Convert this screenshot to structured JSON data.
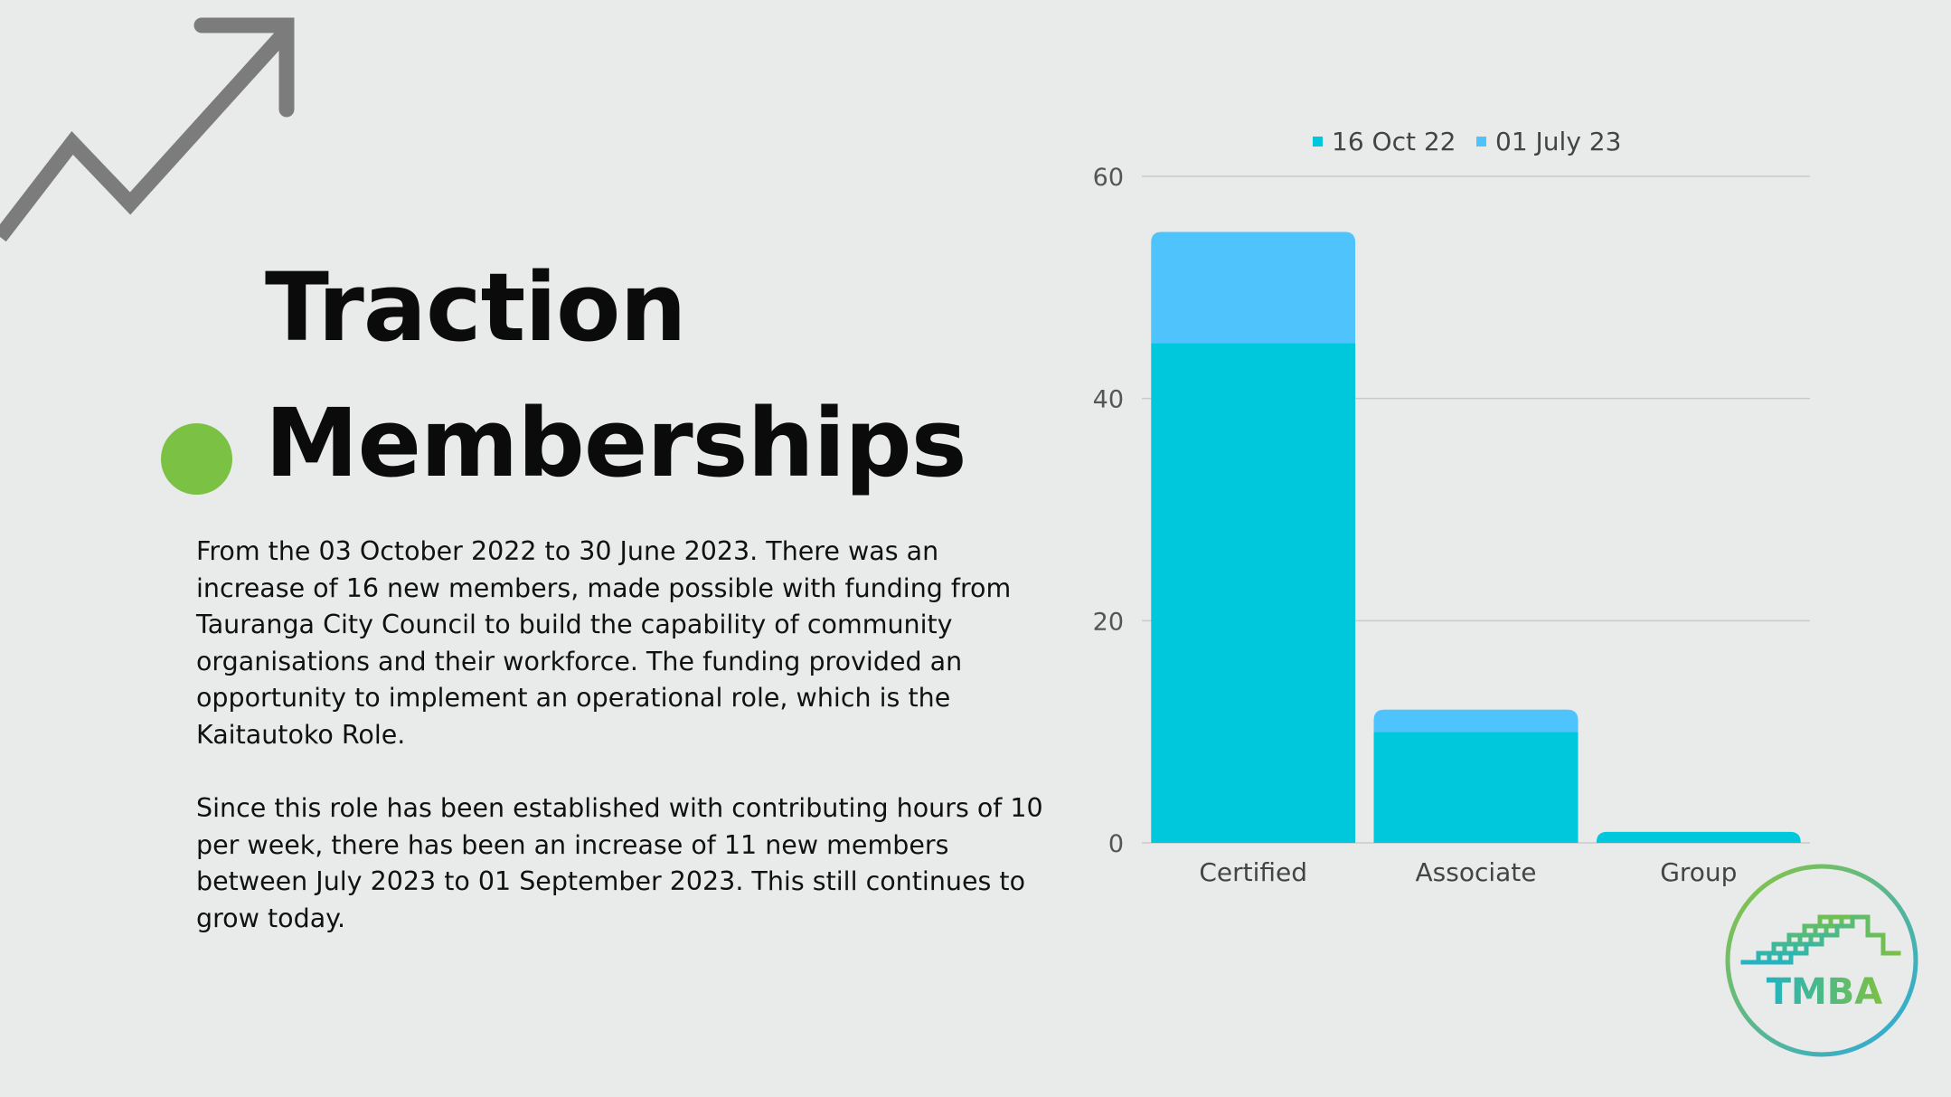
{
  "slide": {
    "title_line1": "Traction",
    "title_line2": "Memberships",
    "paragraph1": "From the 03 October 2022 to 30 June 2023. There was an increase of 16 new members, made possible with funding from Tauranga City Council to build the capability of community organisations and their workforce. The funding provided an opportunity to implement an operational role, which is the Kaitautoko Role.",
    "paragraph2": "Since this role has been established with contributing hours of 10 per week, there has been an increase of 11 new members between July 2023 to 01 September 2023. This still continues to grow today."
  },
  "logo": {
    "text": "TMBA",
    "icon": "tmba-logo"
  },
  "decor": {
    "arrow_icon": "trend-up-arrow-icon",
    "dot_color": "#7bc143"
  },
  "chart_data": {
    "type": "bar",
    "stacked": true,
    "categories": [
      "Certified",
      "Associate",
      "Group"
    ],
    "series": [
      {
        "name": "16 Oct 22",
        "values": [
          45,
          10,
          1
        ],
        "color": "#00c8dc"
      },
      {
        "name": "01 July 23",
        "values": [
          10,
          2,
          0
        ],
        "color": "#4ec3fc"
      }
    ],
    "ylim": [
      0,
      60
    ],
    "yticks": [
      0,
      20,
      40,
      60
    ],
    "grid": true,
    "legend": "top"
  }
}
